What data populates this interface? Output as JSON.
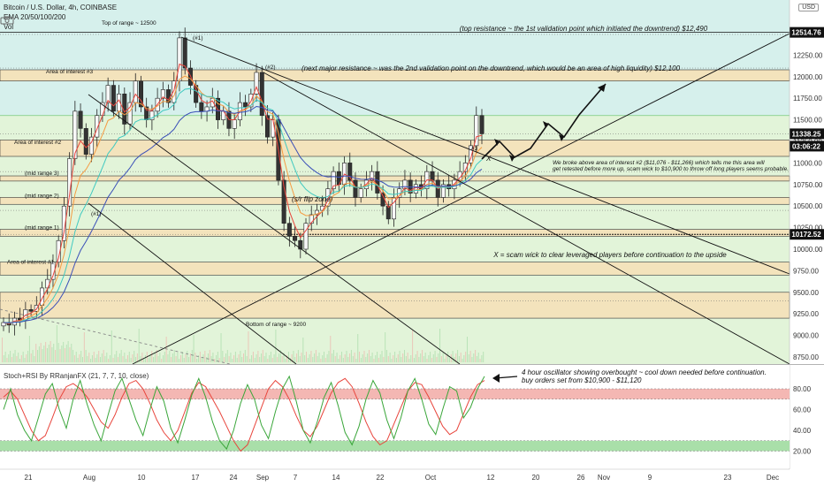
{
  "header": {
    "symbol": "Bitcoin / U.S. Dollar, 4h, COINBASE",
    "ema_label": "EMA 20/50/100/200",
    "vol_label": "Vol",
    "currency_button": "USD"
  },
  "colors": {
    "bg_upper": "#d6f0ec",
    "bg_lower": "#e2f4d9",
    "zone_fill": "#f3e3bc",
    "candle_up": "#333333",
    "candle_down": "#333333",
    "tag_dark": "#111111",
    "ema20": "#e8453c",
    "ema50": "#f59b42",
    "ema100": "#40c9c0",
    "ema200": "#3a4fb8",
    "stoch_red": "#e8453c",
    "stoch_green": "#3aa63a",
    "ob_band": "#f4b7b3",
    "os_band": "#a9dfa9"
  },
  "chart_data": [
    {
      "type": "candlestick",
      "title": "Bitcoin / U.S. Dollar, 4h, COINBASE",
      "indicators": [
        "EMA 20/50/100/200",
        "Vol"
      ],
      "y_ticks": [
        8750,
        9000,
        9250,
        9500,
        9750,
        10000,
        10250,
        10500,
        10750,
        11000,
        11250,
        11500,
        11750,
        12000,
        12250,
        12500
      ],
      "ylim": [
        8600,
        12750
      ],
      "x_ticks": [
        "21",
        "Aug",
        "10",
        "17",
        "24",
        "Sep",
        "7",
        "14",
        "22",
        "Oct",
        "12",
        "20",
        "26",
        "Nov",
        "9",
        "23",
        "Dec"
      ],
      "price_tags": [
        {
          "value": "12514.76",
          "style": "dark"
        },
        {
          "value": "11338.25",
          "style": "dark"
        },
        {
          "value": "03:06:22",
          "style": "dark"
        },
        {
          "value": "10172.52",
          "style": "dark"
        }
      ],
      "close_approx": [
        9150,
        9120,
        9200,
        9180,
        9300,
        9280,
        9350,
        9550,
        9650,
        9850,
        10100,
        10500,
        11050,
        11600,
        11400,
        11100,
        11300,
        11550,
        11700,
        11900,
        11600,
        11800,
        11450,
        11700,
        11950,
        11650,
        11500,
        11600,
        11750,
        11850,
        11700,
        11950,
        12450,
        12100,
        11900,
        11700,
        11600,
        11650,
        11750,
        11500,
        11600,
        11400,
        11500,
        11700,
        11650,
        11800,
        12050,
        11550,
        11300,
        11500,
        10800,
        10300,
        10150,
        10100,
        10000,
        10300,
        10400,
        10450,
        10500,
        10700,
        10900,
        10750,
        11000,
        10800,
        10600,
        10700,
        10800,
        10900,
        10650,
        10500,
        10350,
        10600,
        10700,
        10800,
        10650,
        10750,
        10700,
        10900,
        10800,
        10600,
        10750,
        10700,
        10800,
        10900,
        11000,
        11200,
        11550,
        11338
      ],
      "zones": [
        {
          "label": "Area of interest #3",
          "low": 11950,
          "high": 12080
        },
        {
          "label": "Area of interest #2",
          "low": 11076,
          "high": 11266
        },
        {
          "label": "(mid range 3)",
          "low": 10790,
          "high": 10850
        },
        {
          "label": "(mid range 2)",
          "low": 10520,
          "high": 10600
        },
        {
          "label": "(mid range 1)",
          "low": 10150,
          "high": 10230
        },
        {
          "label": "Area of interest #1",
          "low": 9700,
          "high": 9850
        },
        {
          "label": "",
          "low": 9200,
          "high": 9500
        }
      ],
      "annotations": [
        "Top of range ~ 12500",
        "(top resistance ~ the 1st validation point which initiated the downtrend) $12,490",
        "(next major resistance ~ was the 2nd validation point on the downtrend, which would be an area of high liquidity) $12,100",
        "We broke above area of interest #2 ($11,076 - $11,266) which tells me this area will",
        "get retested before more up, scam wick to $10,900 to throw off long players seems probable.",
        "X = scam wick to clear leveraged players before continuation to the upside",
        "Bottom of range ~ 9200",
        "(s/r flip zone)",
        "(#1)",
        "(#2)",
        "(#1)",
        "#3",
        "X"
      ]
    },
    {
      "type": "line",
      "title": "Stoch+RSI By RRanjanFX (21, 7, 7, 10, close)",
      "y_ticks": [
        20.0,
        40.0,
        60.0,
        80.0
      ],
      "ylim": [
        5,
        100
      ],
      "overbought_band": [
        70,
        80
      ],
      "oversold_band": [
        20,
        30
      ],
      "annotation": [
        "4 hour oscillator showing overbought ~ cool down needed before continuation.",
        "buy orders set from $10,900 - $11,120"
      ],
      "series_red": [
        72,
        78,
        70,
        55,
        40,
        30,
        35,
        52,
        70,
        82,
        85,
        80,
        72,
        60,
        48,
        42,
        55,
        72,
        85,
        88,
        80,
        66,
        50,
        38,
        30,
        40,
        58,
        76,
        86,
        82,
        70,
        58,
        44,
        30,
        20,
        26,
        44,
        62,
        80,
        88,
        82,
        70,
        54,
        40,
        34,
        44,
        60,
        76,
        86,
        90,
        82,
        66,
        48,
        34,
        26,
        30,
        46,
        62,
        78,
        86,
        84,
        72,
        58,
        44,
        36,
        40,
        56,
        72,
        84,
        88
      ],
      "series_green": [
        60,
        80,
        55,
        40,
        30,
        52,
        75,
        85,
        60,
        42,
        70,
        88,
        65,
        45,
        30,
        55,
        78,
        90,
        70,
        50,
        35,
        60,
        82,
        68,
        42,
        28,
        50,
        74,
        90,
        72,
        48,
        30,
        22,
        40,
        66,
        84,
        70,
        45,
        32,
        58,
        80,
        92,
        68,
        40,
        28,
        48,
        72,
        86,
        64,
        38,
        26,
        44,
        70,
        88,
        76,
        50,
        32,
        52,
        78,
        90,
        70,
        46,
        36,
        60,
        82,
        78,
        52,
        62,
        80,
        92
      ]
    }
  ]
}
